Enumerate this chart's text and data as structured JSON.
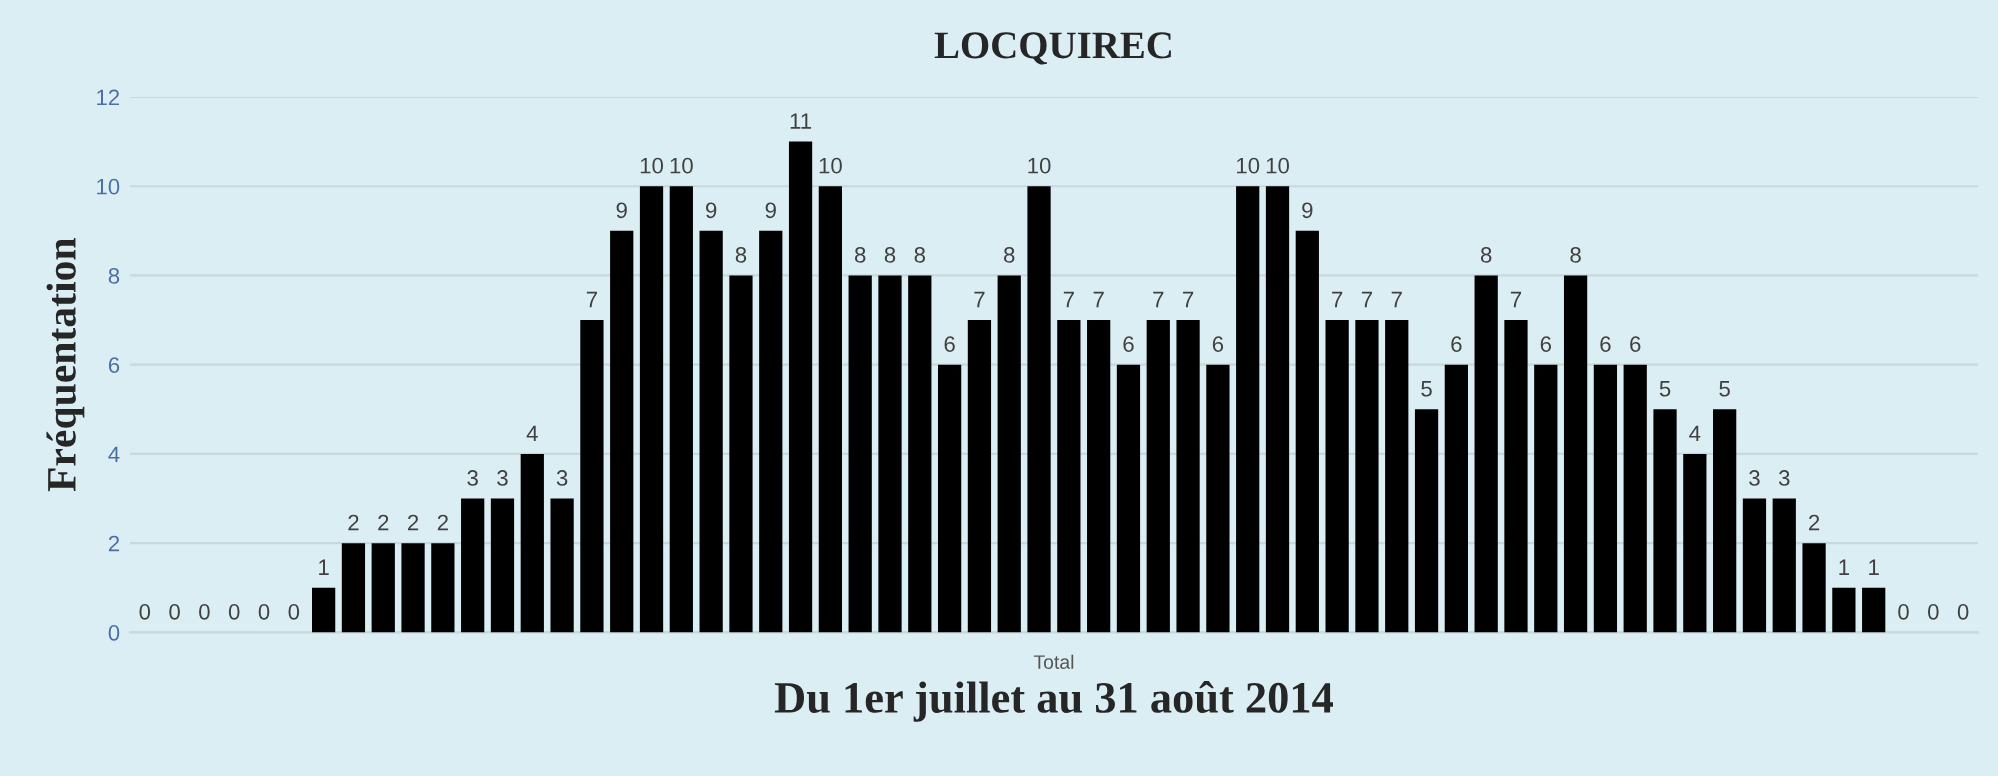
{
  "chart_data": {
    "type": "bar",
    "title": "LOCQUIREC",
    "xlabel": "Du 1er juillet au 31 août 2014",
    "ylabel": "Fréquentation",
    "annotations": [
      "Total"
    ],
    "categories": [
      null,
      null,
      null,
      null,
      null,
      null,
      null,
      null,
      null,
      null,
      null,
      null,
      null,
      null,
      null,
      null,
      null,
      null,
      null,
      null,
      null,
      null,
      null,
      null,
      null,
      null,
      null,
      null,
      null,
      null,
      null,
      null,
      null,
      null,
      null,
      null,
      null,
      null,
      null,
      null,
      null,
      null,
      null,
      null,
      null,
      null,
      null,
      null,
      null,
      null,
      null,
      null,
      null,
      null,
      null,
      null,
      null,
      null,
      null,
      null,
      null,
      null
    ],
    "values": [
      0,
      0,
      0,
      0,
      0,
      0,
      1,
      2,
      2,
      2,
      2,
      3,
      3,
      4,
      3,
      7,
      9,
      10,
      10,
      9,
      8,
      9,
      11,
      10,
      8,
      8,
      8,
      6,
      7,
      8,
      10,
      7,
      7,
      6,
      7,
      7,
      6,
      10,
      10,
      9,
      7,
      7,
      7,
      5,
      6,
      8,
      7,
      6,
      8,
      6,
      6,
      5,
      4,
      5,
      3,
      3,
      2,
      1,
      1,
      0,
      0,
      0
    ],
    "color": "#000000",
    "ylim": [
      0,
      12
    ],
    "yticks": [
      0,
      2,
      4,
      6,
      8,
      10,
      12
    ],
    "grid": "y",
    "data_labels": true,
    "legend": false
  }
}
